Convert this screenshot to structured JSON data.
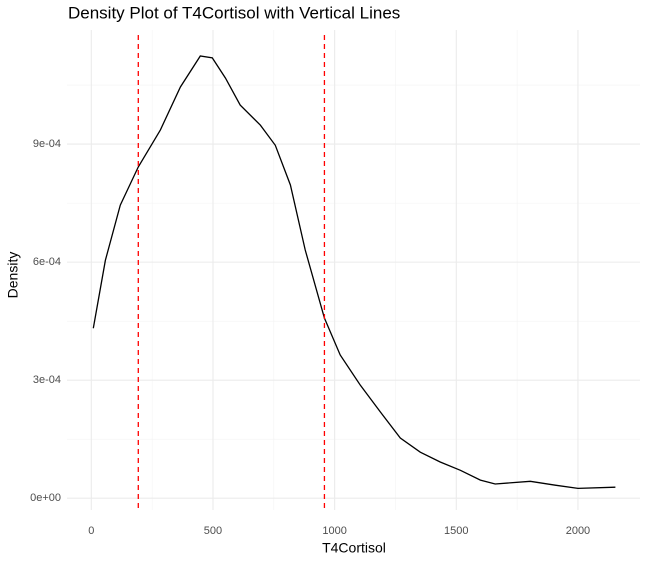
{
  "chart_data": {
    "type": "line",
    "title": "Density Plot of T4Cortisol with Vertical Lines",
    "x_label": "T4Cortisol",
    "y_label": "Density",
    "x": [
      8,
      58,
      119,
      193,
      284,
      366,
      448,
      497,
      551,
      612,
      695,
      756,
      818,
      879,
      958,
      1023,
      1106,
      1188,
      1270,
      1352,
      1434,
      1517,
      1599,
      1660,
      1804,
      1907,
      2000,
      2154
    ],
    "values": [
      0.000432,
      0.000605,
      0.000745,
      0.000842,
      0.000936,
      0.001045,
      0.001124,
      0.001119,
      0.001068,
      0.000999,
      0.000948,
      0.000897,
      0.000796,
      0.000631,
      0.000458,
      0.000364,
      0.000287,
      0.000219,
      0.000153,
      0.000117,
      9.2e-05,
      7.1e-05,
      4.6e-05,
      3.6e-05,
      4.3e-05,
      3.3e-05,
      2.5e-05,
      2.8e-05
    ],
    "color": "#000000",
    "vlines": [
      193,
      958
    ],
    "vline_color": "#ff0000",
    "xlim": [
      -100,
      2255
    ],
    "ylim": [
      -3e-05,
      0.00119
    ],
    "xticks": [
      0,
      500,
      1000,
      1500,
      2000
    ],
    "yticks": [
      {
        "value": 0,
        "label": "0e+00"
      },
      {
        "value": 0.0003,
        "label": "3e-04"
      },
      {
        "value": 0.0006,
        "label": "6e-04"
      },
      {
        "value": 0.0009,
        "label": "9e-04"
      }
    ],
    "xminor": [
      250,
      750,
      1250,
      1750
    ],
    "yminor": [
      0.00015,
      0.00045,
      0.00075,
      0.00105
    ],
    "grid": true
  }
}
